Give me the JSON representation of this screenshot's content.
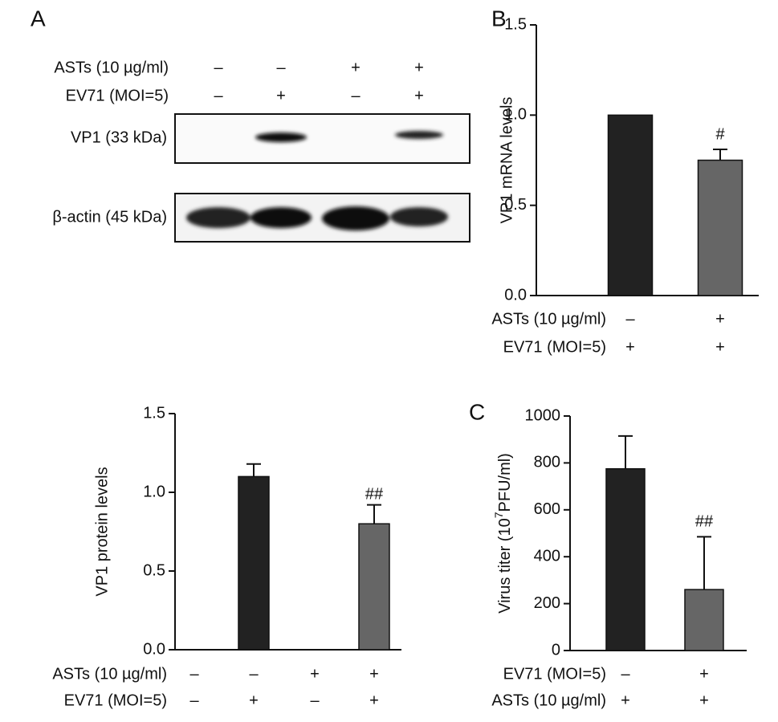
{
  "blot": {
    "panel": "A",
    "treatments": [
      {
        "name": "ASTs (10 µg/ml)",
        "signs": [
          "–",
          "–",
          "+",
          "+"
        ]
      },
      {
        "name": "EV71 (MOI=5)",
        "signs": [
          "–",
          "+",
          "–",
          "+"
        ]
      }
    ],
    "rows": [
      "VP1 (33 kDa)",
      "β-actin (45 kDa)"
    ]
  },
  "chart_data": [
    {
      "type": "bar",
      "panel": "B",
      "ylabel": "VP1 mRNA levels",
      "treatments": [
        {
          "name": "ASTs (10 µg/ml)",
          "signs": [
            "–",
            "+"
          ]
        },
        {
          "name": "EV71 (MOI=5)",
          "signs": [
            "+",
            "+"
          ]
        }
      ],
      "values": [
        1.0,
        0.75
      ],
      "errors": [
        null,
        0.06
      ],
      "annotations": [
        null,
        "#"
      ],
      "colors": [
        "#222222",
        "#666666"
      ],
      "ylim": [
        0,
        1.5
      ],
      "yticks": [
        {
          "value": 0,
          "label": "0.0"
        },
        0.5,
        {
          "value": 1,
          "label": "1.0"
        },
        1.5
      ]
    },
    {
      "type": "bar",
      "ylabel": "VP1 protein levels",
      "treatments": [
        {
          "name": "ASTs (10 µg/ml)",
          "signs": [
            "–",
            "–",
            "+",
            "+"
          ]
        },
        {
          "name": "EV71 (MOI=5)",
          "signs": [
            "–",
            "+",
            "–",
            "+"
          ]
        }
      ],
      "values": [
        null,
        1.1,
        null,
        0.8
      ],
      "errors": [
        null,
        0.08,
        null,
        0.12
      ],
      "annotations": [
        null,
        null,
        null,
        "##"
      ],
      "colors": [
        "#222222",
        "#222222",
        "#666666",
        "#666666"
      ],
      "ylim": [
        0,
        1.5
      ],
      "yticks": [
        {
          "value": 0,
          "label": "0.0"
        },
        0.5,
        {
          "value": 1,
          "label": "1.0"
        },
        1.5
      ]
    },
    {
      "type": "bar",
      "panel": "C",
      "ylabel": [
        "Virus titer (10",
        "7",
        "PFU/ml)"
      ],
      "treatments": [
        {
          "name": "EV71 (MOI=5)",
          "signs": [
            "–",
            "+"
          ]
        },
        {
          "name": "ASTs (10 µg/ml)",
          "signs": [
            "+",
            "+"
          ]
        }
      ],
      "values": [
        775,
        260
      ],
      "errors": [
        140,
        225
      ],
      "annotations": [
        null,
        "##"
      ],
      "colors": [
        "#222222",
        "#666666"
      ],
      "ylim": [
        0,
        1000
      ],
      "yticks": [
        0,
        200,
        400,
        600,
        800,
        1000
      ]
    }
  ]
}
